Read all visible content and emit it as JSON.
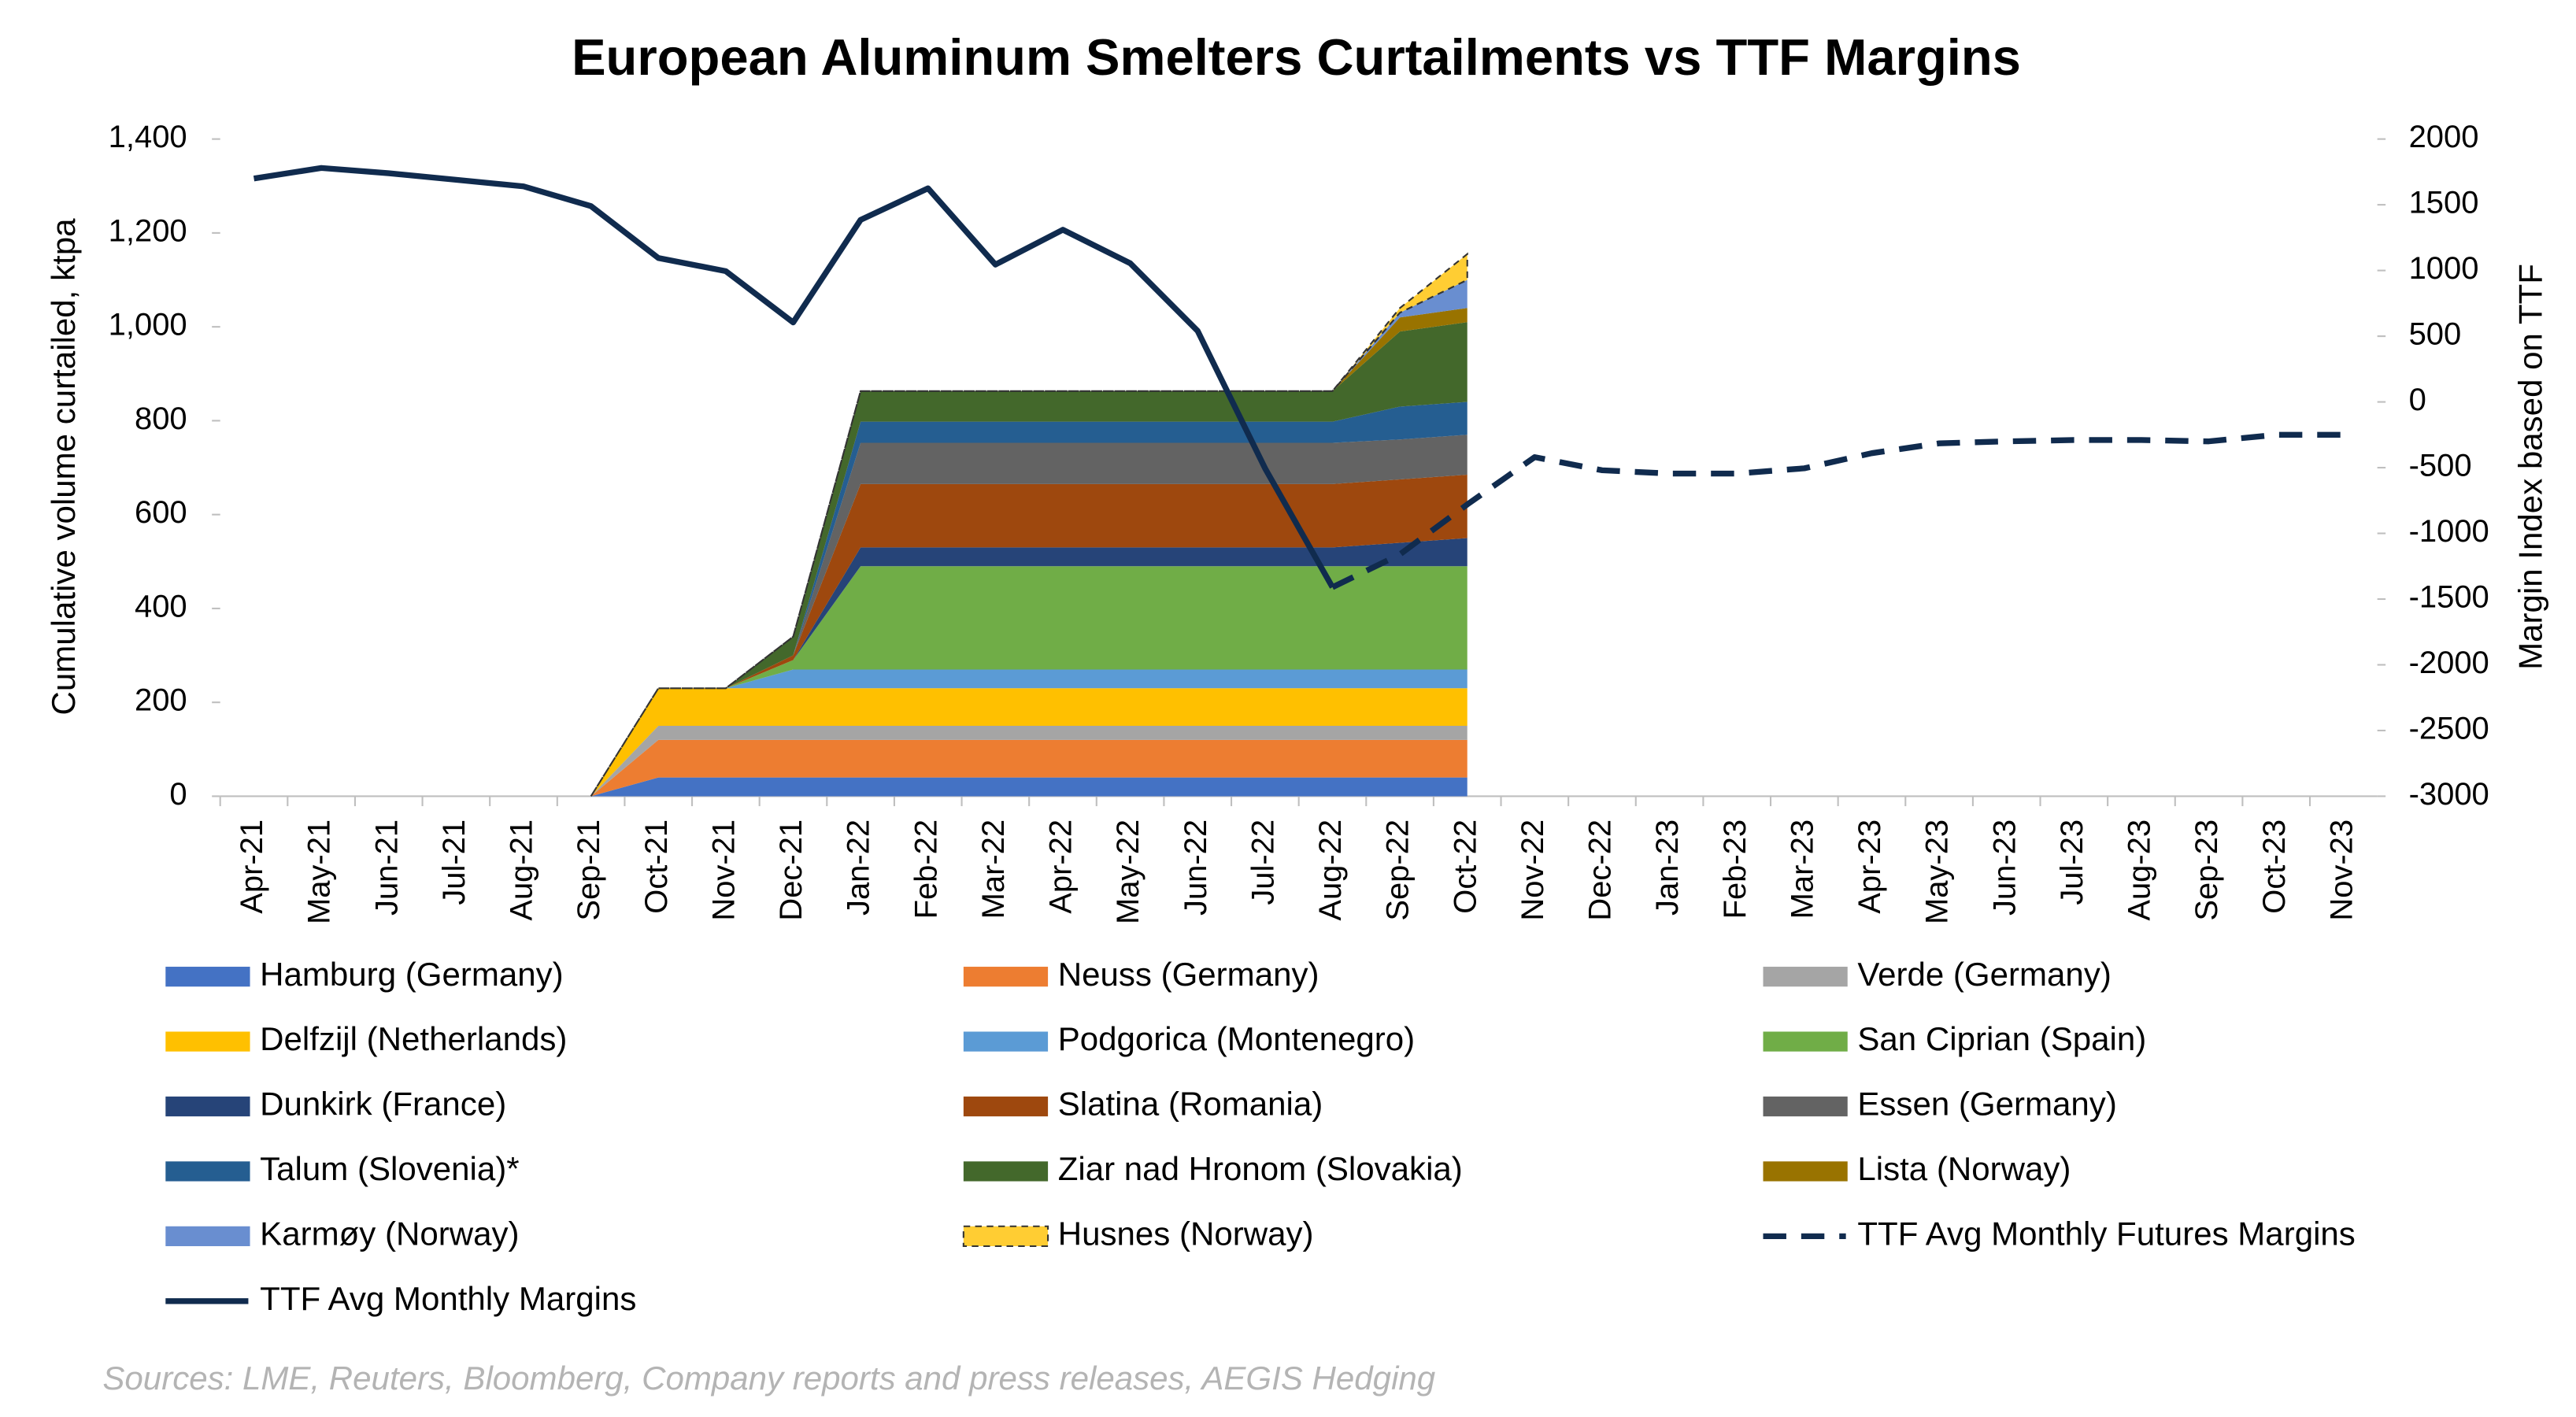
{
  "chart_data": {
    "type": "area",
    "title": "European Aluminum Smelters Curtailments vs TTF Margins",
    "y_label": "Cumulative volume curtailed, ktpa",
    "y2_label": "Margin Index based on TTF",
    "source": "Sources: LME, Reuters, Bloomberg, Company reports and press releases, AEGIS Hedging",
    "categories": [
      "Apr-21",
      "May-21",
      "Jun-21",
      "Jul-21",
      "Aug-21",
      "Sep-21",
      "Oct-21",
      "Nov-21",
      "Dec-21",
      "Jan-22",
      "Feb-22",
      "Mar-22",
      "Apr-22",
      "May-22",
      "Jun-22",
      "Jul-22",
      "Aug-22",
      "Sep-22",
      "Oct-22",
      "Nov-22",
      "Dec-22",
      "Jan-23",
      "Feb-23",
      "Mar-23",
      "Apr-23",
      "May-23",
      "Jun-23",
      "Jul-23",
      "Aug-23",
      "Sep-23",
      "Oct-23",
      "Nov-23"
    ],
    "stacked": true,
    "ylim": [
      0,
      1400
    ],
    "yticks": [
      0,
      200,
      400,
      600,
      800,
      {
        "value": 1000,
        "label": "1,000"
      },
      {
        "value": 1200,
        "label": "1,200"
      },
      {
        "value": 1400,
        "label": "1,400"
      }
    ],
    "y2lim": [
      -3000,
      2000
    ],
    "y2ticks": [
      -3000,
      -2500,
      -2000,
      -1500,
      -1000,
      -500,
      0,
      500,
      1000,
      1500,
      2000
    ],
    "series": [
      {
        "name": "Hamburg (Germany)",
        "color": "#4472c4",
        "values": [
          null,
          null,
          null,
          null,
          null,
          0,
          40,
          40,
          40,
          40,
          40,
          40,
          40,
          40,
          40,
          40,
          40,
          40,
          40,
          null,
          null,
          null,
          null,
          null,
          null,
          null,
          null,
          null,
          null,
          null,
          null,
          null
        ]
      },
      {
        "name": "Neuss (Germany)",
        "color": "#ed7d31",
        "values": [
          null,
          null,
          null,
          null,
          null,
          0,
          80,
          80,
          80,
          80,
          80,
          80,
          80,
          80,
          80,
          80,
          80,
          80,
          80,
          null,
          null,
          null,
          null,
          null,
          null,
          null,
          null,
          null,
          null,
          null,
          null,
          null
        ]
      },
      {
        "name": "Verde (Germany)",
        "color": "#a5a5a5",
        "values": [
          null,
          null,
          null,
          null,
          null,
          0,
          30,
          30,
          30,
          30,
          30,
          30,
          30,
          30,
          30,
          30,
          30,
          30,
          30,
          null,
          null,
          null,
          null,
          null,
          null,
          null,
          null,
          null,
          null,
          null,
          null,
          null
        ]
      },
      {
        "name": "Delfzijl (Netherlands)",
        "color": "#ffc000",
        "values": [
          null,
          null,
          null,
          null,
          null,
          0,
          80,
          80,
          80,
          80,
          80,
          80,
          80,
          80,
          80,
          80,
          80,
          80,
          80,
          null,
          null,
          null,
          null,
          null,
          null,
          null,
          null,
          null,
          null,
          null,
          null,
          null
        ]
      },
      {
        "name": "Podgorica (Montenegro)",
        "color": "#5b9bd5",
        "values": [
          null,
          null,
          null,
          null,
          null,
          0,
          0,
          0,
          40,
          40,
          40,
          40,
          40,
          40,
          40,
          40,
          40,
          40,
          40,
          null,
          null,
          null,
          null,
          null,
          null,
          null,
          null,
          null,
          null,
          null,
          null,
          null
        ]
      },
      {
        "name": "San Ciprian (Spain)",
        "color": "#70ad47",
        "values": [
          null,
          null,
          null,
          null,
          null,
          0,
          0,
          0,
          20,
          220,
          220,
          220,
          220,
          220,
          220,
          220,
          220,
          220,
          220,
          null,
          null,
          null,
          null,
          null,
          null,
          null,
          null,
          null,
          null,
          null,
          null,
          null
        ]
      },
      {
        "name": "Dunkirk (France)",
        "color": "#264478",
        "values": [
          null,
          null,
          null,
          null,
          null,
          0,
          0,
          0,
          0,
          40,
          40,
          40,
          40,
          40,
          40,
          40,
          40,
          50,
          60,
          null,
          null,
          null,
          null,
          null,
          null,
          null,
          null,
          null,
          null,
          null,
          null,
          null
        ]
      },
      {
        "name": "Slatina (Romania)",
        "color": "#9e480e",
        "values": [
          null,
          null,
          null,
          null,
          null,
          0,
          0,
          0,
          10,
          135,
          135,
          135,
          135,
          135,
          135,
          135,
          135,
          135,
          135,
          null,
          null,
          null,
          null,
          null,
          null,
          null,
          null,
          null,
          null,
          null,
          null,
          null
        ]
      },
      {
        "name": "Essen (Germany)",
        "color": "#636363",
        "values": [
          null,
          null,
          null,
          null,
          null,
          0,
          0,
          0,
          0,
          88,
          88,
          88,
          88,
          88,
          88,
          88,
          88,
          85,
          85,
          null,
          null,
          null,
          null,
          null,
          null,
          null,
          null,
          null,
          null,
          null,
          null,
          null
        ]
      },
      {
        "name": "Talum (Slovenia)*",
        "color": "#255e91",
        "values": [
          null,
          null,
          null,
          null,
          null,
          0,
          0,
          0,
          0,
          45,
          45,
          45,
          45,
          45,
          45,
          45,
          45,
          70,
          70,
          null,
          null,
          null,
          null,
          null,
          null,
          null,
          null,
          null,
          null,
          null,
          null,
          null
        ]
      },
      {
        "name": "Ziar nad Hronom (Slovakia)",
        "color": "#43682b",
        "values": [
          null,
          null,
          null,
          null,
          null,
          0,
          0,
          0,
          40,
          65,
          65,
          65,
          65,
          65,
          65,
          65,
          65,
          160,
          170,
          null,
          null,
          null,
          null,
          null,
          null,
          null,
          null,
          null,
          null,
          null,
          null,
          null
        ]
      },
      {
        "name": "Lista (Norway)",
        "color": "#997300",
        "values": [
          null,
          null,
          null,
          null,
          null,
          0,
          0,
          0,
          0,
          0,
          0,
          0,
          0,
          0,
          0,
          0,
          0,
          30,
          30,
          null,
          null,
          null,
          null,
          null,
          null,
          null,
          null,
          null,
          null,
          null,
          null,
          null
        ]
      },
      {
        "name": "Karmøy (Norway)",
        "color": "#698ed0",
        "values": [
          null,
          null,
          null,
          null,
          null,
          0,
          0,
          0,
          0,
          0,
          0,
          0,
          0,
          0,
          0,
          0,
          0,
          10,
          60,
          null,
          null,
          null,
          null,
          null,
          null,
          null,
          null,
          null,
          null,
          null,
          null,
          null
        ]
      },
      {
        "name": "Husnes (Norway)",
        "color": "#ffcd33",
        "dashed": true,
        "values": [
          null,
          null,
          null,
          null,
          null,
          0,
          0,
          0,
          0,
          0,
          0,
          0,
          0,
          0,
          0,
          0,
          0,
          10,
          55,
          null,
          null,
          null,
          null,
          null,
          null,
          null,
          null,
          null,
          null,
          null,
          null,
          null
        ]
      },
      {
        "name": "TTF Avg Monthly Futures Margins",
        "color": "#102b4e",
        "type": "line",
        "dashed": true,
        "axis": "y2",
        "values": [
          null,
          null,
          null,
          null,
          null,
          null,
          null,
          null,
          null,
          null,
          null,
          null,
          null,
          null,
          null,
          null,
          -1410,
          -1160,
          -780,
          -420,
          -520,
          -545,
          -545,
          -505,
          -390,
          -315,
          -300,
          -290,
          -290,
          -300,
          -250,
          -250
        ]
      },
      {
        "name": "TTF Avg Monthly Margins",
        "color": "#102b4e",
        "type": "line",
        "axis": "y2",
        "values": [
          1700,
          1780,
          1740,
          1690,
          1640,
          1490,
          1095,
          995,
          605,
          1385,
          1625,
          1045,
          1310,
          1055,
          540,
          -505,
          -1410,
          null,
          null,
          null,
          null,
          null,
          null,
          null,
          null,
          null,
          null,
          null,
          null,
          null,
          null,
          null
        ]
      }
    ]
  }
}
